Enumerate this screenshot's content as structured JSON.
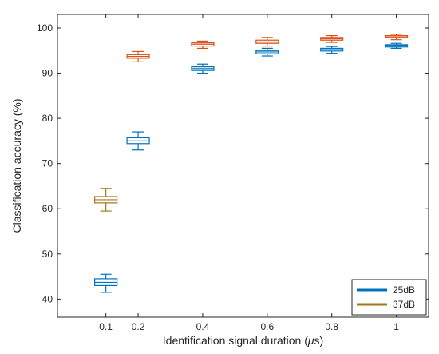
{
  "chart_data": {
    "type": "box",
    "title": "",
    "xlabel_main": "Identification signal duration (",
    "xlabel_unit_mu": "μ",
    "xlabel_unit_rest": "s)",
    "ylabel": "Classification accuracy (%)",
    "x_ticks": [
      "0.1",
      "0.2",
      "0.4",
      "0.6",
      "0.8",
      "1"
    ],
    "y_ticks": [
      "40",
      "50",
      "60",
      "70",
      "80",
      "90",
      "100"
    ],
    "xlim": [
      -0.05,
      1.1
    ],
    "ylim": [
      36,
      103
    ],
    "grid": false,
    "legend_position": "bottom-right",
    "series": [
      {
        "name": "25dB",
        "color": "#0072BD",
        "boxes": [
          {
            "x": 0.1,
            "whisker_low": 41.5,
            "q1": 43.0,
            "median": 43.7,
            "q3": 44.5,
            "whisker_high": 45.5
          },
          {
            "x": 0.2,
            "whisker_low": 73.0,
            "q1": 74.4,
            "median": 75.0,
            "q3": 75.7,
            "whisker_high": 77.0
          },
          {
            "x": 0.4,
            "whisker_low": 90.0,
            "q1": 90.6,
            "median": 91.0,
            "q3": 91.4,
            "whisker_high": 92.0
          },
          {
            "x": 0.6,
            "whisker_low": 93.8,
            "q1": 94.3,
            "median": 94.7,
            "q3": 95.0,
            "whisker_high": 95.5
          },
          {
            "x": 0.8,
            "whisker_low": 94.4,
            "q1": 94.9,
            "median": 95.2,
            "q3": 95.5,
            "whisker_high": 95.9
          },
          {
            "x": 1.0,
            "whisker_low": 95.5,
            "q1": 95.8,
            "median": 96.1,
            "q3": 96.3,
            "whisker_high": 96.6
          }
        ]
      },
      {
        "name": "37dB",
        "color": "#D95319",
        "boxes": [
          {
            "x": 0.2,
            "whisker_low": 92.5,
            "q1": 93.3,
            "median": 93.7,
            "q3": 94.1,
            "whisker_high": 94.8
          },
          {
            "x": 0.4,
            "whisker_low": 95.5,
            "q1": 96.0,
            "median": 96.4,
            "q3": 96.7,
            "whisker_high": 97.1
          },
          {
            "x": 0.6,
            "whisker_low": 96.0,
            "q1": 96.6,
            "median": 96.9,
            "q3": 97.3,
            "whisker_high": 97.9
          },
          {
            "x": 0.8,
            "whisker_low": 96.8,
            "q1": 97.3,
            "median": 97.6,
            "q3": 97.9,
            "whisker_high": 98.3
          },
          {
            "x": 1.0,
            "whisker_low": 97.4,
            "q1": 97.8,
            "median": 98.0,
            "q3": 98.3,
            "whisker_high": 98.6
          }
        ]
      },
      {
        "name": "",
        "color": "#A2781F",
        "boxes": [
          {
            "x": 0.1,
            "whisker_low": 59.5,
            "q1": 61.3,
            "median": 62.0,
            "q3": 62.7,
            "whisker_high": 64.5
          }
        ]
      }
    ],
    "legend": [
      {
        "label": "25dB",
        "color": "#0072BD"
      },
      {
        "label": "37dB",
        "color": "#A2781F"
      }
    ]
  }
}
